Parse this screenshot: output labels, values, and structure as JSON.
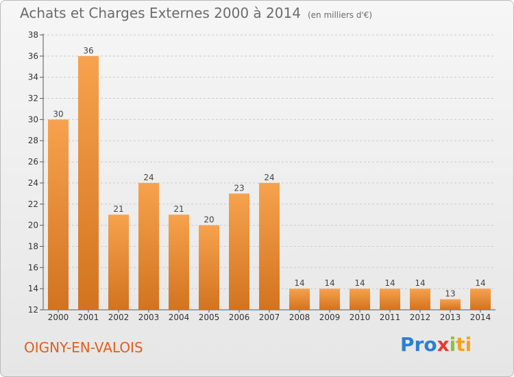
{
  "header": {
    "title": "Achats et Charges Externes 2000 à 2014",
    "unit": "(en milliers d'€)"
  },
  "footer": {
    "commune": "OIGNY-EN-VALOIS",
    "logo": {
      "p1": "Pro",
      "p2": "x",
      "p3": "i",
      "p4": "ti"
    }
  },
  "colors": {
    "bar_light": "#f7a24e",
    "bar_dark": "#d2731f",
    "grid": "#c9c9c9",
    "commune": "#e05f1a"
  },
  "chart_data": {
    "type": "bar",
    "title": "Achats et Charges Externes 2000 à 2014",
    "subtitle": "(en milliers d'€)",
    "categories": [
      "2000",
      "2001",
      "2002",
      "2003",
      "2004",
      "2005",
      "2006",
      "2007",
      "2008",
      "2009",
      "2010",
      "2011",
      "2012",
      "2013",
      "2014"
    ],
    "values": [
      30,
      36,
      21,
      24,
      21,
      20,
      23,
      24,
      14,
      14,
      14,
      14,
      14,
      13,
      14
    ],
    "ylim": [
      12,
      38
    ],
    "yticks": [
      12,
      14,
      16,
      18,
      20,
      22,
      24,
      26,
      28,
      30,
      32,
      34,
      36,
      38
    ],
    "grid": true,
    "xlabel": "",
    "ylabel": ""
  }
}
